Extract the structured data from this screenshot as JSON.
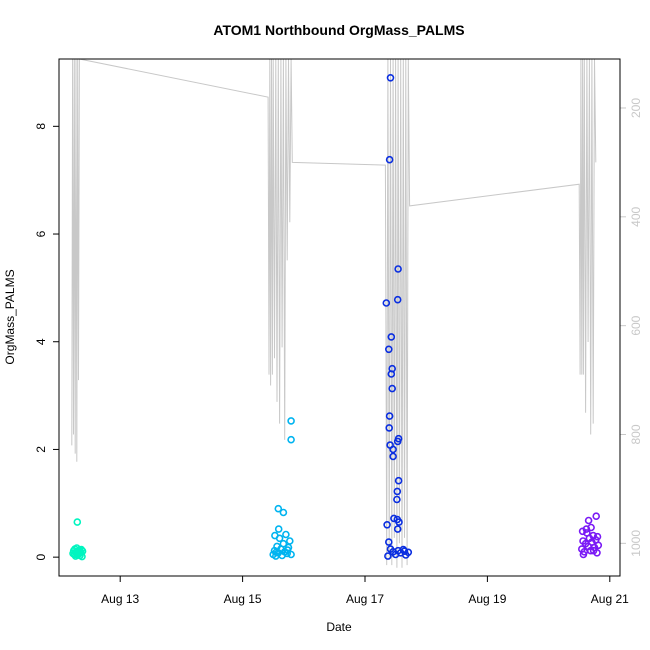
{
  "chart_data": {
    "type": "scatter",
    "title": "ATOM1 Northbound OrgMass_PALMS",
    "xlabel": "Date",
    "ylabel": "OrgMass_PALMS",
    "xlim": [
      "2016-08-12 00:00",
      "2016-08-21 04:00"
    ],
    "ylim": [
      -0.35,
      9.25
    ],
    "x_ticks": [
      {
        "label": "Aug 13",
        "value": "2016-08-13"
      },
      {
        "label": "Aug 15",
        "value": "2016-08-15"
      },
      {
        "label": "Aug 17",
        "value": "2016-08-17"
      },
      {
        "label": "Aug 19",
        "value": "2016-08-19"
      },
      {
        "label": "Aug 21",
        "value": "2016-08-21"
      }
    ],
    "y_ticks": [
      0,
      2,
      4,
      6,
      8
    ],
    "right_axis": {
      "reversed": true,
      "ticks": [
        200,
        400,
        600,
        800,
        1000
      ],
      "range": [
        110,
        1060
      ],
      "color": "#c8c8c8",
      "altitude_trace_color": "#c8c8c8",
      "altitude_trace": [
        [
          "2016-08-12 05:00",
          820
        ],
        [
          "2016-08-12 05:20",
          80
        ],
        [
          "2016-08-12 05:40",
          800
        ],
        [
          "2016-08-12 06:00",
          80
        ],
        [
          "2016-08-12 06:20",
          835
        ],
        [
          "2016-08-12 06:40",
          80
        ],
        [
          "2016-08-12 07:00",
          850
        ],
        [
          "2016-08-12 07:20",
          80
        ],
        [
          "2016-08-12 07:40",
          700
        ],
        [
          "2016-08-12 08:00",
          80
        ],
        [
          "2016-08-15 10:00",
          180
        ],
        [
          "2016-08-15 10:20",
          690
        ],
        [
          "2016-08-15 10:40",
          80
        ],
        [
          "2016-08-15 11:00",
          710
        ],
        [
          "2016-08-15 11:20",
          80
        ],
        [
          "2016-08-15 11:40",
          690
        ],
        [
          "2016-08-15 12:00",
          80
        ],
        [
          "2016-08-15 12:30",
          660
        ],
        [
          "2016-08-15 13:00",
          80
        ],
        [
          "2016-08-15 13:30",
          740
        ],
        [
          "2016-08-15 14:00",
          80
        ],
        [
          "2016-08-15 14:30",
          780
        ],
        [
          "2016-08-15 15:00",
          80
        ],
        [
          "2016-08-15 15:30",
          640
        ],
        [
          "2016-08-15 16:00",
          80
        ],
        [
          "2016-08-15 16:30",
          810
        ],
        [
          "2016-08-15 17:00",
          80
        ],
        [
          "2016-08-15 17:30",
          480
        ],
        [
          "2016-08-15 18:00",
          80
        ],
        [
          "2016-08-15 18:30",
          410
        ],
        [
          "2016-08-15 19:00",
          80
        ],
        [
          "2016-08-15 19:30",
          300
        ],
        [
          "2016-08-17 08:00",
          305
        ],
        [
          "2016-08-17 08:30",
          1040
        ],
        [
          "2016-08-17 09:00",
          80
        ],
        [
          "2016-08-17 09:30",
          1030
        ],
        [
          "2016-08-17 10:00",
          80
        ],
        [
          "2016-08-17 10:30",
          1040
        ],
        [
          "2016-08-17 11:00",
          80
        ],
        [
          "2016-08-17 11:30",
          990
        ],
        [
          "2016-08-17 12:00",
          80
        ],
        [
          "2016-08-17 12:30",
          1045
        ],
        [
          "2016-08-17 13:00",
          80
        ],
        [
          "2016-08-17 13:30",
          1000
        ],
        [
          "2016-08-17 14:00",
          80
        ],
        [
          "2016-08-17 14:30",
          1045
        ],
        [
          "2016-08-17 15:00",
          80
        ],
        [
          "2016-08-17 15:30",
          990
        ],
        [
          "2016-08-17 16:00",
          80
        ],
        [
          "2016-08-17 16:30",
          1040
        ],
        [
          "2016-08-17 17:00",
          80
        ],
        [
          "2016-08-17 17:30",
          380
        ],
        [
          "2016-08-20 12:00",
          340
        ],
        [
          "2016-08-20 12:20",
          690
        ],
        [
          "2016-08-20 12:40",
          80
        ],
        [
          "2016-08-20 13:00",
          690
        ],
        [
          "2016-08-20 13:20",
          80
        ],
        [
          "2016-08-20 13:40",
          690
        ],
        [
          "2016-08-20 14:00",
          80
        ],
        [
          "2016-08-20 14:30",
          760
        ],
        [
          "2016-08-20 15:00",
          80
        ],
        [
          "2016-08-20 15:30",
          630
        ],
        [
          "2016-08-20 16:00",
          80
        ],
        [
          "2016-08-20 16:30",
          800
        ],
        [
          "2016-08-20 17:00",
          80
        ],
        [
          "2016-08-20 17:30",
          780
        ],
        [
          "2016-08-20 18:00",
          80
        ],
        [
          "2016-08-20 18:30",
          300
        ]
      ]
    },
    "series": [
      {
        "color": "#00f5c0",
        "points": [
          [
            "2016-08-12 05:30",
            0.07
          ],
          [
            "2016-08-12 05:45",
            0.12
          ],
          [
            "2016-08-12 06:00",
            0.05
          ],
          [
            "2016-08-12 06:15",
            0.15
          ],
          [
            "2016-08-12 06:30",
            0.02
          ],
          [
            "2016-08-12 06:45",
            0.09
          ],
          [
            "2016-08-12 07:00",
            0.17
          ],
          [
            "2016-08-12 07:15",
            0.04
          ],
          [
            "2016-08-12 07:30",
            0.1
          ],
          [
            "2016-08-12 07:45",
            0.06
          ],
          [
            "2016-08-12 08:00",
            0.13
          ],
          [
            "2016-08-12 08:15",
            0.03
          ],
          [
            "2016-08-12 08:30",
            0.08
          ],
          [
            "2016-08-12 08:45",
            0.14
          ],
          [
            "2016-08-12 09:00",
            0.01
          ],
          [
            "2016-08-12 09:15",
            0.11
          ],
          [
            "2016-08-12 07:10",
            0.65
          ]
        ]
      },
      {
        "color": "#00b4f0",
        "points": [
          [
            "2016-08-15 12:00",
            0.05
          ],
          [
            "2016-08-15 12:30",
            0.12
          ],
          [
            "2016-08-15 13:00",
            0.02
          ],
          [
            "2016-08-15 13:30",
            0.2
          ],
          [
            "2016-08-15 14:00",
            0.08
          ],
          [
            "2016-08-15 14:30",
            0.35
          ],
          [
            "2016-08-15 15:00",
            0.15
          ],
          [
            "2016-08-15 15:30",
            0.03
          ],
          [
            "2016-08-15 16:00",
            0.25
          ],
          [
            "2016-08-15 16:30",
            0.1
          ],
          [
            "2016-08-15 17:00",
            0.42
          ],
          [
            "2016-08-15 17:30",
            0.07
          ],
          [
            "2016-08-15 18:00",
            0.18
          ],
          [
            "2016-08-15 18:30",
            0.3
          ],
          [
            "2016-08-15 19:00",
            0.05
          ],
          [
            "2016-08-15 12:40",
            0.4
          ],
          [
            "2016-08-15 14:10",
            0.52
          ],
          [
            "2016-08-15 14:00",
            0.9
          ],
          [
            "2016-08-15 16:00",
            0.83
          ],
          [
            "2016-08-15 19:00",
            2.53
          ],
          [
            "2016-08-15 19:00",
            2.18
          ],
          [
            "2016-08-15 17:40",
            0.13
          ],
          [
            "2016-08-15 13:10",
            0.09
          ]
        ]
      },
      {
        "color": "#0a2ee0",
        "points": [
          [
            "2016-08-17 10:00",
            8.9
          ],
          [
            "2016-08-17 09:40",
            7.38
          ],
          [
            "2016-08-17 13:00",
            5.35
          ],
          [
            "2016-08-17 08:20",
            4.72
          ],
          [
            "2016-08-17 12:50",
            4.78
          ],
          [
            "2016-08-17 10:20",
            4.09
          ],
          [
            "2016-08-17 09:20",
            3.86
          ],
          [
            "2016-08-17 10:40",
            3.5
          ],
          [
            "2016-08-17 10:20",
            3.4
          ],
          [
            "2016-08-17 10:40",
            3.13
          ],
          [
            "2016-08-17 09:40",
            2.62
          ],
          [
            "2016-08-17 09:30",
            2.4
          ],
          [
            "2016-08-17 13:10",
            2.2
          ],
          [
            "2016-08-17 12:50",
            2.15
          ],
          [
            "2016-08-17 09:50",
            2.08
          ],
          [
            "2016-08-17 11:00",
            2.0
          ],
          [
            "2016-08-17 11:00",
            1.87
          ],
          [
            "2016-08-17 13:10",
            1.42
          ],
          [
            "2016-08-17 12:40",
            1.22
          ],
          [
            "2016-08-17 12:30",
            1.07
          ],
          [
            "2016-08-17 11:20",
            0.72
          ],
          [
            "2016-08-17 12:40",
            0.7
          ],
          [
            "2016-08-17 13:20",
            0.65
          ],
          [
            "2016-08-17 08:40",
            0.6
          ],
          [
            "2016-08-17 12:50",
            0.52
          ],
          [
            "2016-08-17 09:20",
            0.28
          ],
          [
            "2016-08-17 10:00",
            0.15
          ],
          [
            "2016-08-17 11:00",
            0.1
          ],
          [
            "2016-08-17 12:00",
            0.05
          ],
          [
            "2016-08-17 13:00",
            0.12
          ],
          [
            "2016-08-17 14:00",
            0.08
          ],
          [
            "2016-08-17 15:00",
            0.14
          ],
          [
            "2016-08-17 16:00",
            0.04
          ],
          [
            "2016-08-17 17:00",
            0.09
          ],
          [
            "2016-08-17 09:00",
            0.02
          ],
          [
            "2016-08-17 15:30",
            0.11
          ]
        ]
      },
      {
        "color": "#7a1af5",
        "points": [
          [
            "2016-08-20 13:00",
            0.15
          ],
          [
            "2016-08-20 13:30",
            0.3
          ],
          [
            "2016-08-20 14:00",
            0.1
          ],
          [
            "2016-08-20 14:30",
            0.25
          ],
          [
            "2016-08-20 15:00",
            0.45
          ],
          [
            "2016-08-20 15:30",
            0.2
          ],
          [
            "2016-08-20 16:00",
            0.35
          ],
          [
            "2016-08-20 16:30",
            0.12
          ],
          [
            "2016-08-20 17:00",
            0.28
          ],
          [
            "2016-08-20 17:30",
            0.4
          ],
          [
            "2016-08-20 18:00",
            0.18
          ],
          [
            "2016-08-20 18:30",
            0.32
          ],
          [
            "2016-08-20 19:00",
            0.08
          ],
          [
            "2016-08-20 19:30",
            0.22
          ],
          [
            "2016-08-20 13:20",
            0.48
          ],
          [
            "2016-08-20 15:40",
            0.68
          ],
          [
            "2016-08-20 18:40",
            0.76
          ],
          [
            "2016-08-20 16:40",
            0.55
          ],
          [
            "2016-08-20 13:40",
            0.05
          ],
          [
            "2016-08-20 17:40",
            0.12
          ],
          [
            "2016-08-20 19:10",
            0.38
          ],
          [
            "2016-08-20 14:50",
            0.52
          ]
        ]
      }
    ]
  }
}
